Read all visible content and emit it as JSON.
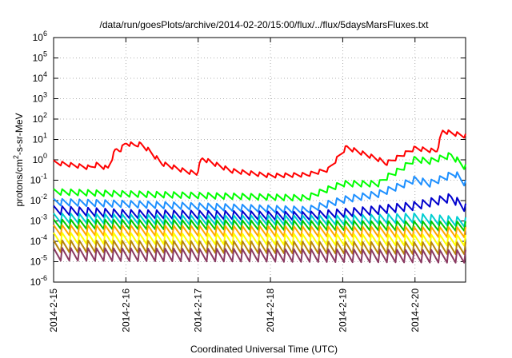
{
  "chart_data": {
    "type": "line",
    "title": "/data/run/goesPlots/archive/2014-02-20/15:00/flux/../flux/5daysMarsFluxes.txt",
    "xlabel": "Coordinated Universal Time (UTC)",
    "ylabel": {
      "prefix": "protons/cm",
      "sup": "2",
      "suffix": "-s-sr-MeV"
    },
    "y_scale": "log",
    "ylim_exp": [
      -6,
      6
    ],
    "ytick_labels": [
      {
        "base": "10",
        "exp": "-6"
      },
      {
        "base": "10",
        "exp": "-5"
      },
      {
        "base": "10",
        "exp": "-4"
      },
      {
        "base": "10",
        "exp": "-3"
      },
      {
        "base": "10",
        "exp": "-2"
      },
      {
        "base": "10",
        "exp": "-1"
      },
      {
        "base": "10",
        "exp": "0"
      },
      {
        "base": "10",
        "exp": "1"
      },
      {
        "base": "10",
        "exp": "2"
      },
      {
        "base": "10",
        "exp": "3"
      },
      {
        "base": "10",
        "exp": "4"
      },
      {
        "base": "10",
        "exp": "5"
      },
      {
        "base": "10",
        "exp": "6"
      }
    ],
    "x_days_range": [
      0,
      5.7
    ],
    "xtick_labels": [
      "2014-2-15",
      "2014-2-16",
      "2014-2-17",
      "2014-2-18",
      "2014-2-19",
      "2014-2-20"
    ],
    "grid": true,
    "series": [
      {
        "color": "#ff0000",
        "log_points": [
          [
            0,
            -0.15
          ],
          [
            0.5,
            -0.4
          ],
          [
            0.6,
            -0.25
          ],
          [
            0.75,
            -0.45
          ],
          [
            0.86,
            0.5
          ],
          [
            0.92,
            0.45
          ],
          [
            1.0,
            0.8
          ],
          [
            1.12,
            0.7
          ],
          [
            1.2,
            0.75
          ],
          [
            1.3,
            0.5
          ],
          [
            1.5,
            -0.2
          ],
          [
            1.8,
            -0.55
          ],
          [
            1.98,
            -0.7
          ],
          [
            2.05,
            0.05
          ],
          [
            2.12,
            -0.05
          ],
          [
            2.45,
            -0.55
          ],
          [
            3.0,
            -0.8
          ],
          [
            3.5,
            -0.75
          ],
          [
            3.8,
            -0.5
          ],
          [
            4.05,
            0.6
          ],
          [
            4.5,
            0
          ],
          [
            4.6,
            -0.2
          ],
          [
            5.0,
            0.55
          ],
          [
            5.3,
            0.4
          ],
          [
            5.38,
            1.4
          ],
          [
            5.5,
            1.3
          ],
          [
            5.7,
            1.15
          ]
        ]
      },
      {
        "color": "#00ff00",
        "log_points": [
          [
            0,
            -1.6
          ],
          [
            1.0,
            -1.7
          ],
          [
            3.5,
            -1.9
          ],
          [
            3.7,
            -1.6
          ],
          [
            4.0,
            -1.2
          ],
          [
            4.5,
            -1.2
          ],
          [
            4.6,
            -0.9
          ],
          [
            4.8,
            -0.5
          ],
          [
            5.0,
            0
          ],
          [
            5.2,
            -0.1
          ],
          [
            5.5,
            0.2
          ],
          [
            5.7,
            -0.4
          ]
        ]
      },
      {
        "color": "#1e90ff",
        "log_points": [
          [
            0,
            -2.1
          ],
          [
            1.0,
            -2.2
          ],
          [
            3.5,
            -2.5
          ],
          [
            4.0,
            -2.0
          ],
          [
            4.5,
            -1.7
          ],
          [
            4.8,
            -1.3
          ],
          [
            5.0,
            -1.0
          ],
          [
            5.2,
            -1.2
          ],
          [
            5.55,
            -0.7
          ],
          [
            5.7,
            -1.2
          ]
        ]
      },
      {
        "color": "#0000cd",
        "log_points": [
          [
            0,
            -2.5
          ],
          [
            1.0,
            -2.7
          ],
          [
            3.5,
            -2.8
          ],
          [
            4.5,
            -2.5
          ],
          [
            5.0,
            -2.3
          ],
          [
            5.5,
            -1.9
          ],
          [
            5.7,
            -2.4
          ]
        ]
      },
      {
        "color": "#00ced1",
        "log_points": [
          [
            0,
            -2.9
          ],
          [
            2.0,
            -3.0
          ],
          [
            4.0,
            -3.0
          ],
          [
            5.0,
            -2.9
          ],
          [
            5.7,
            -3.1
          ]
        ]
      },
      {
        "color": "#00c800",
        "log_points": [
          [
            0,
            -3.2
          ],
          [
            5.7,
            -3.3
          ]
        ]
      },
      {
        "color": "#ffa500",
        "log_points": [
          [
            0,
            -3.5
          ],
          [
            5.7,
            -3.6
          ]
        ]
      },
      {
        "color": "#ffff00",
        "log_points": [
          [
            0,
            -3.9
          ],
          [
            5.7,
            -4.0
          ]
        ]
      },
      {
        "color": "#b8860b",
        "log_points": [
          [
            0,
            -4.3
          ],
          [
            5.7,
            -4.4
          ]
        ]
      },
      {
        "color": "#8b3a62",
        "log_points": [
          [
            0,
            -4.7
          ],
          [
            5.7,
            -4.8
          ]
        ]
      }
    ]
  }
}
